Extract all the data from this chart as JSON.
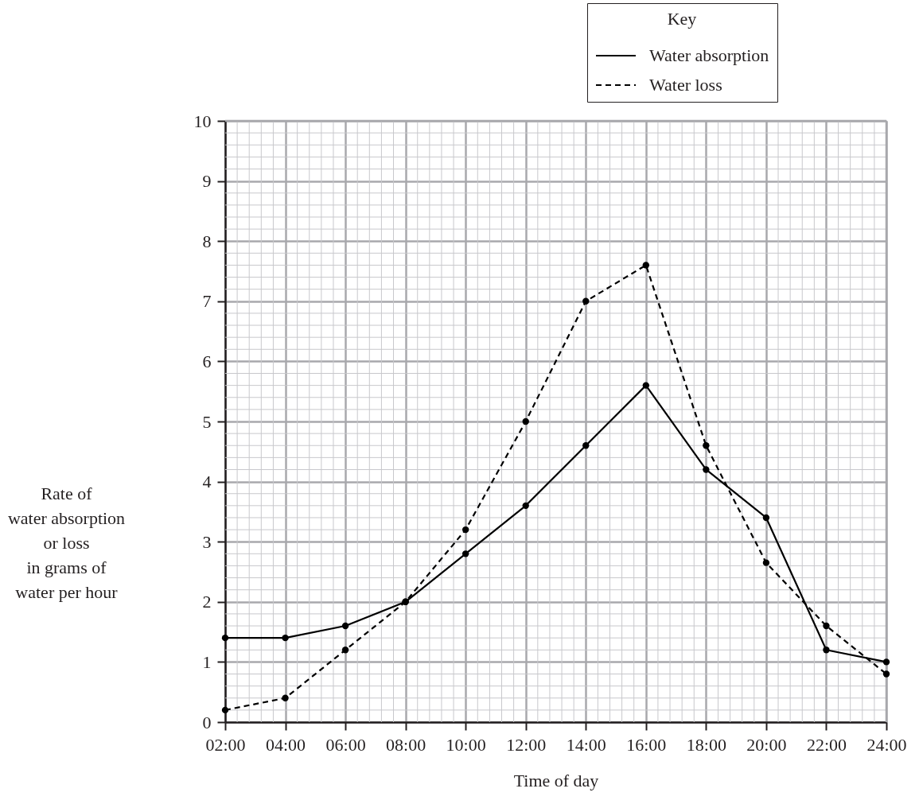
{
  "chart_data": {
    "type": "line",
    "xlabel": "Time of day",
    "ylabel": "Rate of\nwater absorption\nor loss\nin grams of\nwater per hour",
    "legend_title": "Key",
    "x": [
      2,
      4,
      6,
      8,
      10,
      12,
      14,
      16,
      18,
      20,
      22,
      24
    ],
    "series": [
      {
        "name": "Water absorption",
        "color": "#000000",
        "line_style": "solid",
        "values": [
          1.4,
          1.4,
          1.6,
          2.0,
          2.8,
          3.6,
          4.6,
          5.6,
          4.2,
          3.4,
          1.2,
          1.0
        ]
      },
      {
        "name": "Water loss",
        "color": "#000000",
        "line_style": "dashed",
        "values": [
          0.2,
          0.4,
          1.2,
          2.0,
          3.2,
          5.0,
          7.0,
          7.6,
          4.6,
          2.65,
          1.6,
          0.8
        ]
      }
    ],
    "xlim": [
      2,
      24
    ],
    "xticks": [
      {
        "value": 2,
        "label": "02:00"
      },
      {
        "value": 4,
        "label": "04:00"
      },
      {
        "value": 6,
        "label": "06:00"
      },
      {
        "value": 8,
        "label": "08:00"
      },
      {
        "value": 10,
        "label": "10:00"
      },
      {
        "value": 12,
        "label": "12:00"
      },
      {
        "value": 14,
        "label": "14:00"
      },
      {
        "value": 16,
        "label": "16:00"
      },
      {
        "value": 18,
        "label": "18:00"
      },
      {
        "value": 20,
        "label": "20:00"
      },
      {
        "value": 22,
        "label": "22:00"
      },
      {
        "value": 24,
        "label": "24:00"
      }
    ],
    "ylim": [
      0,
      10
    ],
    "yticks": [
      0,
      1,
      2,
      3,
      4,
      5,
      6,
      7,
      8,
      9,
      10
    ],
    "grid": true,
    "legend": "top right",
    "marker": "circle"
  }
}
